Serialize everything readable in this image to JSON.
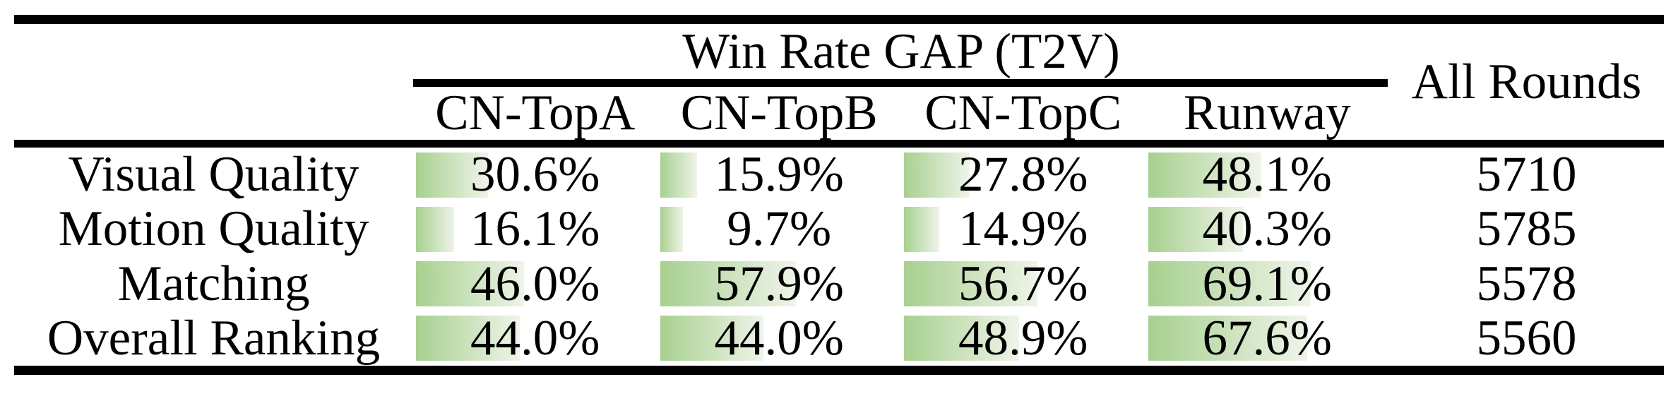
{
  "figure": {
    "group_header": "Win Rate GAP (T2V)",
    "all_rounds_header": "All Rounds",
    "columns": [
      "CN-TopA",
      "CN-TopB",
      "CN-TopC",
      "Runway"
    ],
    "rows": [
      {
        "label": "Visual Quality",
        "gaps": [
          {
            "label": "30.6%",
            "value": 30.6
          },
          {
            "label": "15.9%",
            "value": 15.9
          },
          {
            "label": "27.8%",
            "value": 27.8
          },
          {
            "label": "48.1%",
            "value": 48.1
          }
        ],
        "all_rounds": "5710"
      },
      {
        "label": "Motion Quality",
        "gaps": [
          {
            "label": "16.1%",
            "value": 16.1
          },
          {
            "label": "9.7%",
            "value": 9.7
          },
          {
            "label": "14.9%",
            "value": 14.9
          },
          {
            "label": "40.3%",
            "value": 40.3
          }
        ],
        "all_rounds": "5785"
      },
      {
        "label": "Matching",
        "gaps": [
          {
            "label": "46.0%",
            "value": 46.0
          },
          {
            "label": "57.9%",
            "value": 57.9
          },
          {
            "label": "56.7%",
            "value": 56.7
          },
          {
            "label": "69.1%",
            "value": 69.1
          }
        ],
        "all_rounds": "5578"
      },
      {
        "label": "Overall Ranking",
        "gaps": [
          {
            "label": "44.0%",
            "value": 44.0
          },
          {
            "label": "44.0%",
            "value": 44.0
          },
          {
            "label": "48.9%",
            "value": 48.9
          },
          {
            "label": "67.6%",
            "value": 67.6
          }
        ],
        "all_rounds": "5560"
      }
    ]
  },
  "colors": {
    "rule": "#000000",
    "text": "#000000",
    "bar_gradient_start": "#a7d08f",
    "bar_gradient_end": "#eff4e9"
  },
  "chart_data": {
    "type": "table",
    "title": "Win Rate GAP (T2V)",
    "columns": [
      "CN-TopA",
      "CN-TopB",
      "CN-TopC",
      "Runway",
      "All Rounds"
    ],
    "row_labels": [
      "Visual Quality",
      "Motion Quality",
      "Matching",
      "Overall Ranking"
    ],
    "series": [
      {
        "name": "CN-TopA",
        "values": [
          30.6,
          16.1,
          46.0,
          44.0
        ]
      },
      {
        "name": "CN-TopB",
        "values": [
          15.9,
          9.7,
          57.9,
          44.0
        ]
      },
      {
        "name": "CN-TopC",
        "values": [
          27.8,
          14.9,
          56.7,
          48.9
        ]
      },
      {
        "name": "Runway",
        "values": [
          48.1,
          40.3,
          69.1,
          67.6
        ]
      },
      {
        "name": "All Rounds",
        "values": [
          5710,
          5785,
          5578,
          5560
        ]
      }
    ],
    "layout_hints": {
      "bars": "in-cell data bars, left anchored, length proportional to percent (100% = full cell width)",
      "bar_range": [
        0,
        100
      ],
      "style": "booktabs rules: thick top/bottom, mid rule under headers, cmidrule under spanning header"
    }
  }
}
